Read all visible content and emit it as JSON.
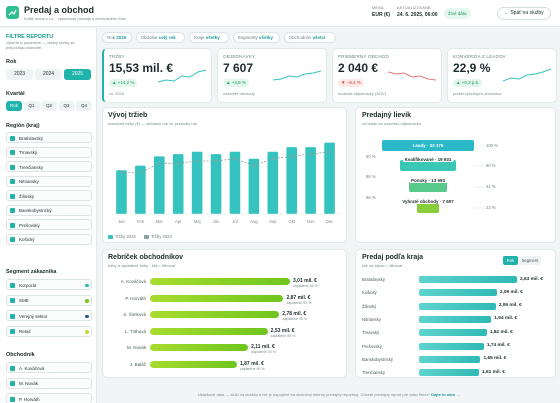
{
  "header": {
    "title": "Predaj a obchod",
    "subtitle": "Kotlič mons s.r.o. · výkonnosť predaja a obchodného tímu",
    "currency_label": "MENA",
    "currency": "EUR (€)",
    "updated_label": "AKTUALIZOVANÉ",
    "updated": "24. 6. 2025, 06:00",
    "live": "Živé dáta",
    "back": "← Späť na služby"
  },
  "sidebar": {
    "title": "FILTRE REPORTU",
    "hint": "Vyberte si parametre — všetky súvisy sa prepočítajú okamžite.",
    "year": {
      "label": "Rok",
      "options": [
        "2023",
        "2024",
        "2025"
      ],
      "active": 2
    },
    "quarter": {
      "label": "Kvartál",
      "options": [
        "Rok",
        "Q1",
        "Q2",
        "Q3",
        "Q4"
      ],
      "active": 0
    },
    "regions": {
      "label": "Región (kraj)",
      "items": [
        "Bratislavský",
        "Trnavský",
        "Trenčiansky",
        "Nitriansky",
        "Žilinský",
        "Banskobystrický",
        "Prešovský",
        "Košický"
      ]
    },
    "segments": {
      "label": "Segment zákazníka",
      "items": [
        {
          "name": "Korporát",
          "color": "#2bb8b3"
        },
        {
          "name": "SME",
          "color": "#7cc623"
        },
        {
          "name": "Verejný sektor",
          "color": "#1f5f8b"
        },
        {
          "name": "Retail",
          "color": "#c6d83a"
        }
      ]
    },
    "reps": {
      "label": "Obchodník",
      "items": [
        "A. Kováčová",
        "M. Novák",
        "P. Horváth"
      ]
    }
  },
  "chips": [
    {
      "label": "Rok",
      "value": "2025"
    },
    {
      "label": "Obdobie",
      "value": "celý rok"
    },
    {
      "label": "Kraje",
      "value": "všetky"
    },
    {
      "label": "Segmenty",
      "value": "všetky"
    },
    {
      "label": "Obchodníci",
      "value": "všetci"
    }
  ],
  "kpis": [
    {
      "label": "TRŽBY",
      "value": "15,53 mil. €",
      "delta": "▲ +14,2 %",
      "note": "vs. 2024",
      "trend": "up"
    },
    {
      "label": "OBJEDNÁVKY",
      "value": "7 607",
      "delta": "▲ +4,8 %",
      "note": "uzavreté obchody",
      "trend": "up"
    },
    {
      "label": "PRIEMERNÝ OBCHOD",
      "value": "2 040 €",
      "delta": "▼ −8,4 %",
      "note": "hodnota objednávky (AOV)",
      "trend": "down"
    },
    {
      "label": "KONVERZIA Z LEADOV",
      "value": "22,9 %",
      "delta": "▲ +0,3 p.b.",
      "note": "podiel vyhraných obchodov",
      "trend": "up"
    }
  ],
  "revenue": {
    "type": "bar",
    "title": "Vývoj tržieb",
    "subtitle": "mesačné tržby (€) — aktuálny rok vs. predošlý rok",
    "categories": [
      "Jan",
      "Feb",
      "Mar",
      "Apr",
      "Máj",
      "Jún",
      "Júl",
      "Aug",
      "Sep",
      "Okt",
      "Nov",
      "Dec"
    ],
    "series": [
      {
        "name": "Tržby 2025",
        "color": "#34c3bf",
        "values": [
          0.95,
          1.05,
          1.25,
          1.3,
          1.35,
          1.3,
          1.35,
          1.2,
          1.35,
          1.45,
          1.45,
          1.55
        ]
      },
      {
        "name": "Tržby 2024",
        "color": "#8fa0a0",
        "values": [
          0.9,
          0.9,
          1.1,
          1.1,
          1.15,
          1.15,
          1.2,
          1.05,
          1.2,
          1.25,
          1.3,
          1.35
        ]
      }
    ]
  },
  "funnel": {
    "title": "Predajný lievik",
    "subtitle": "od leadu po uzavretú objednávku",
    "stages": [
      {
        "label": "Leady · 33 175",
        "value": 33175,
        "share": "100 %",
        "color": "#2bb8c9"
      },
      {
        "label": "Kvalifikované · 19 931",
        "value": 19931,
        "share": "60 %",
        "color": "#3ac7b6"
      },
      {
        "label": "Ponuky · 13 593",
        "value": 13593,
        "share": "41 %",
        "color": "#58c98a"
      },
      {
        "label": "Vyhraté obchody · 7 607",
        "value": 7607,
        "share": "23 %",
        "color": "#86cf3a"
      }
    ],
    "conversions": [
      "60 %",
      "68 %",
      "56 %"
    ]
  },
  "reps_chart": {
    "title": "Rebríček obchodníkov",
    "subtitle": "tržby a zaplatené tržby · klik = filtrovať",
    "rows": [
      {
        "name": "A. Kováčová",
        "value": 3.01,
        "label": "3,01 mil. €",
        "note": "zaplatené 94 %"
      },
      {
        "name": "P. Horváth",
        "value": 2.87,
        "label": "2,87 mil. €",
        "note": "zaplatené 91 %"
      },
      {
        "name": "S. Šimková",
        "value": 2.78,
        "label": "2,78 mil. €",
        "note": "zaplatené 96 %"
      },
      {
        "name": "L. Tóthová",
        "value": 2.53,
        "label": "2,53 mil. €",
        "note": "zaplatené 89 %"
      },
      {
        "name": "M. Novák",
        "value": 2.11,
        "label": "2,11 mil. €",
        "note": "zaplatené 93 %"
      },
      {
        "name": "J. Baláž",
        "value": 1.87,
        "label": "1,87 mil. €",
        "note": "zaplatené 90 %"
      }
    ]
  },
  "regions_chart": {
    "title": "Predaj podľa kraja",
    "subtitle": "klik na stĺpec = filtrovať",
    "toggle": [
      "Rok",
      "Segment"
    ],
    "rows": [
      {
        "name": "Bratislavský",
        "value": 2.63,
        "label": "2,63 mil. €"
      },
      {
        "name": "Košický",
        "value": 2.09,
        "label": "2,09 mil. €"
      },
      {
        "name": "Žilinský",
        "value": 2.06,
        "label": "2,06 mil. €"
      },
      {
        "name": "Nitriansky",
        "value": 1.94,
        "label": "1,94 mil. €"
      },
      {
        "name": "Trnavský",
        "value": 1.82,
        "label": "1,82 mil. €"
      },
      {
        "name": "Prešovský",
        "value": 1.74,
        "label": "1,74 mil. €"
      },
      {
        "name": "Banskobystrický",
        "value": 1.65,
        "label": "1,65 mil. €"
      },
      {
        "name": "Trenčiansky",
        "value": 1.61,
        "label": "1,61 mil. €"
      }
    ]
  },
  "footer": {
    "text": "Ukážkové dáta — slúži na ukážku a nie je napojené na skutočný interný predajný reporting. Chcete predajný report pre vašu firmu?",
    "link": "Dajte to nám →"
  }
}
